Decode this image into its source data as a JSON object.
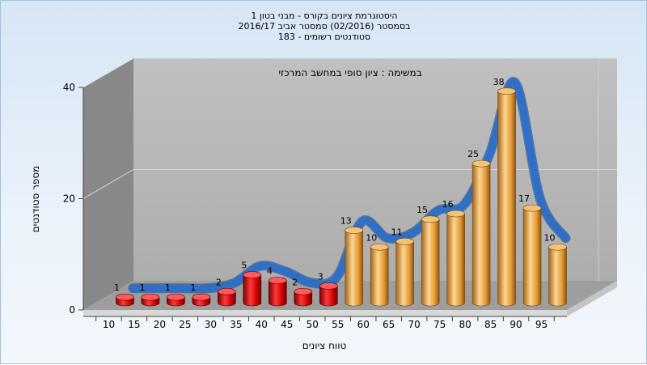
{
  "chart_data": {
    "type": "bar",
    "title_lines": [
      "היסטוגרמת ציונים בקורס - מבני בטון 1",
      "בסמסטר  (02/2016)  סמסטר אביב 2016/17",
      "סטודנטים רשומים - 183"
    ],
    "annotation": "במשימה : ציון סופי במחשב המרכזי",
    "xlabel": "טווח ציונים",
    "ylabel": "מספר סטודנטים",
    "categories": [
      "10",
      "15",
      "20",
      "25",
      "30",
      "35",
      "40",
      "45",
      "50",
      "55",
      "60",
      "65",
      "70",
      "75",
      "80",
      "85",
      "90",
      "95"
    ],
    "values": [
      1,
      1,
      1,
      1,
      2,
      5,
      4,
      2,
      3,
      13,
      10,
      11,
      15,
      16,
      25,
      38,
      17,
      10
    ],
    "yticks": [
      0,
      20,
      40
    ],
    "ylim": [
      0,
      40
    ],
    "grid": true,
    "colors": {
      "fail_bar": "#e01010",
      "pass_bar": "#e6a33a",
      "curve": "#2f6fc6",
      "wall_back": "#b3b3b3",
      "wall_side": "#8a8a8a",
      "floor": "#a0a0a0"
    },
    "pass_threshold_index": 9
  }
}
